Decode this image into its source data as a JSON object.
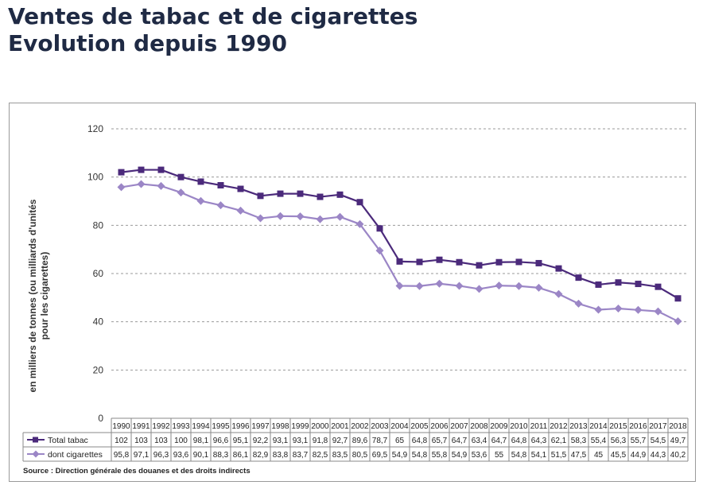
{
  "title": {
    "line1": "Ventes de tabac et de cigarettes",
    "line2": "Evolution depuis 1990"
  },
  "chart_data": {
    "type": "line",
    "ylabel_line1": "en milliers de tonnes (ou milliards d'unités",
    "ylabel_line2": "pour les cigarettes)",
    "ylim": [
      0,
      120
    ],
    "yticks": [
      0,
      20,
      40,
      60,
      80,
      100,
      120
    ],
    "grid": true,
    "legend": "data-table",
    "categories": [
      "1990",
      "1991",
      "1992",
      "1993",
      "1994",
      "1995",
      "1996",
      "1997",
      "1998",
      "1999",
      "2000",
      "2001",
      "2002",
      "2003",
      "2004",
      "2005",
      "2006",
      "2007",
      "2008",
      "2009",
      "2010",
      "2011",
      "2012",
      "2013",
      "2014",
      "2015",
      "2016",
      "2017",
      "2018"
    ],
    "series": [
      {
        "name": "Total tabac",
        "color": "#4b2a7b",
        "marker": "square",
        "values": [
          102,
          103,
          103,
          100,
          98.1,
          96.6,
          95.1,
          92.2,
          93.1,
          93.1,
          91.8,
          92.7,
          89.6,
          78.7,
          65,
          64.8,
          65.7,
          64.7,
          63.4,
          64.7,
          64.8,
          64.3,
          62.1,
          58.3,
          55.4,
          56.3,
          55.7,
          54.5,
          49.7
        ],
        "labels": [
          "102",
          "103",
          "103",
          "100",
          "98,1",
          "96,6",
          "95,1",
          "92,2",
          "93,1",
          "93,1",
          "91,8",
          "92,7",
          "89,6",
          "78,7",
          "65",
          "64,8",
          "65,7",
          "64,7",
          "63,4",
          "64,7",
          "64,8",
          "64,3",
          "62,1",
          "58,3",
          "55,4",
          "56,3",
          "55,7",
          "54,5",
          "49,7"
        ]
      },
      {
        "name": "dont cigarettes",
        "color": "#9b86c6",
        "marker": "diamond",
        "values": [
          95.8,
          97.1,
          96.3,
          93.6,
          90.1,
          88.3,
          86.1,
          82.9,
          83.8,
          83.7,
          82.5,
          83.5,
          80.5,
          69.5,
          54.9,
          54.8,
          55.8,
          54.9,
          53.6,
          55,
          54.8,
          54.1,
          51.5,
          47.5,
          45,
          45.5,
          44.9,
          44.3,
          40.2
        ],
        "labels": [
          "95,8",
          "97,1",
          "96,3",
          "93,6",
          "90,1",
          "88,3",
          "86,1",
          "82,9",
          "83,8",
          "83,7",
          "82,5",
          "83,5",
          "80,5",
          "69,5",
          "54,9",
          "54,8",
          "55,8",
          "54,9",
          "53,6",
          "55",
          "54,8",
          "54,1",
          "51,5",
          "47,5",
          "45",
          "45,5",
          "44,9",
          "44,3",
          "40,2"
        ]
      }
    ],
    "source": "Source : Direction générale des douanes et des droits indirects"
  }
}
